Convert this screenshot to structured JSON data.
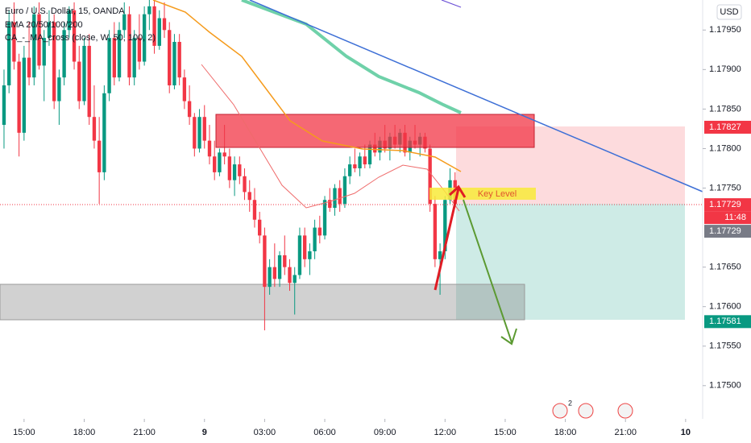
{
  "chart_data": {
    "type": "candlestick",
    "title": "Euro / U.S. Dollar, 15, OANDA",
    "indicators": [
      "EMA 20/50/100/200",
      "CA_-_MA_cross (close, W, 50, 100, 2)"
    ],
    "currency": "USD",
    "annotation": "Key Level",
    "countdown": "11:48",
    "event_badge": "2",
    "up_color": "#089981",
    "down_color": "#f23645",
    "x": [
      -4,
      -3,
      -2,
      -1,
      0,
      1,
      2,
      3,
      4,
      5,
      6,
      7,
      8,
      9,
      10,
      11,
      12,
      13,
      14,
      15,
      16,
      17,
      18,
      19,
      20,
      21,
      22,
      23,
      24,
      25,
      26,
      27,
      28,
      29,
      30,
      31,
      32,
      33,
      34,
      35,
      36,
      37,
      38,
      39,
      40,
      41,
      42,
      43,
      44,
      45,
      46,
      47,
      48,
      49,
      50,
      51,
      52,
      53,
      54,
      55,
      56,
      57,
      58,
      59,
      60,
      61,
      62,
      63,
      64,
      65,
      66,
      67,
      68,
      69,
      70,
      71,
      72,
      73,
      74,
      75,
      76,
      77,
      78,
      79,
      80,
      81,
      82,
      83,
      84,
      85,
      86
    ],
    "open": [
      1.1783,
      1.1788,
      1.1796,
      1.1791,
      1.1782,
      1.17915,
      1.1789,
      1.1797,
      1.17905,
      1.1794,
      1.1796,
      1.1786,
      1.1789,
      1.1795,
      1.17975,
      1.1791,
      1.1786,
      1.1793,
      1.1784,
      1.1781,
      1.1777,
      1.1787,
      1.1794,
      1.1789,
      1.1795,
      1.1797,
      1.1789,
      1.1794,
      1.1791,
      1.1797,
      1.1798,
      1.1793,
      1.17965,
      1.1795,
      1.1788,
      1.17935,
      1.1789,
      1.1786,
      1.1784,
      1.178,
      1.1784,
      1.1781,
      1.1779,
      1.1777,
      1.17795,
      1.1779,
      1.1776,
      1.1778,
      1.17765,
      1.17745,
      1.17735,
      1.1771,
      1.1769,
      1.17625,
      1.1765,
      1.17635,
      1.17665,
      1.1765,
      1.1763,
      1.1764,
      1.1769,
      1.1766,
      1.1767,
      1.177,
      1.1769,
      1.17735,
      1.17725,
      1.1775,
      1.1773,
      1.17765,
      1.1778,
      1.17775,
      1.1779,
      1.1778,
      1.17805,
      1.17795,
      1.1781,
      1.178,
      1.17815,
      1.17805,
      1.1782,
      1.17795,
      1.1781,
      1.17805,
      1.17815,
      1.178,
      1.1773,
      1.1766,
      1.1767,
      1.17735,
      1.1776
    ],
    "high": [
      1.179,
      1.17975,
      1.17985,
      1.1792,
      1.1793,
      1.1796,
      1.1798,
      1.17985,
      1.1795,
      1.17975,
      1.1797,
      1.179,
      1.1796,
      1.1798,
      1.17985,
      1.1793,
      1.1794,
      1.17945,
      1.1788,
      1.1784,
      1.1788,
      1.1795,
      1.1796,
      1.1796,
      1.17985,
      1.1798,
      1.1795,
      1.1797,
      1.1798,
      1.1799,
      1.1799,
      1.17975,
      1.17985,
      1.1796,
      1.17945,
      1.17945,
      1.179,
      1.1788,
      1.17845,
      1.1785,
      1.17855,
      1.1783,
      1.1781,
      1.178,
      1.1783,
      1.178,
      1.1779,
      1.1779,
      1.17775,
      1.1776,
      1.1775,
      1.1772,
      1.177,
      1.1766,
      1.1768,
      1.1767,
      1.1769,
      1.1766,
      1.1765,
      1.177,
      1.177,
      1.1768,
      1.1771,
      1.17715,
      1.1774,
      1.1775,
      1.17755,
      1.1776,
      1.17775,
      1.1779,
      1.178,
      1.17795,
      1.17805,
      1.1781,
      1.1782,
      1.17815,
      1.1783,
      1.1782,
      1.1783,
      1.17825,
      1.1783,
      1.17815,
      1.1783,
      1.1782,
      1.1782,
      1.17805,
      1.1774,
      1.1768,
      1.1774,
      1.17775,
      1.1777
    ],
    "low": [
      1.178,
      1.1787,
      1.179,
      1.1779,
      1.1781,
      1.1788,
      1.1788,
      1.179,
      1.1786,
      1.1793,
      1.1785,
      1.1783,
      1.1788,
      1.1794,
      1.179,
      1.1785,
      1.17855,
      1.1783,
      1.178,
      1.1773,
      1.1776,
      1.1786,
      1.1788,
      1.17885,
      1.1794,
      1.1788,
      1.1788,
      1.179,
      1.17905,
      1.1795,
      1.1792,
      1.17925,
      1.1794,
      1.1787,
      1.17875,
      1.1788,
      1.1785,
      1.1783,
      1.1779,
      1.17795,
      1.178,
      1.1778,
      1.1776,
      1.17765,
      1.1778,
      1.1775,
      1.1774,
      1.17755,
      1.17735,
      1.1772,
      1.177,
      1.1768,
      1.1757,
      1.17615,
      1.17625,
      1.17625,
      1.1764,
      1.1762,
      1.1759,
      1.17635,
      1.1765,
      1.1764,
      1.1766,
      1.1768,
      1.17685,
      1.1772,
      1.17715,
      1.1772,
      1.17725,
      1.17755,
      1.1777,
      1.17765,
      1.17775,
      1.17775,
      1.1779,
      1.17785,
      1.17795,
      1.17785,
      1.178,
      1.17795,
      1.1779,
      1.17785,
      1.178,
      1.1779,
      1.17795,
      1.1772,
      1.1765,
      1.17615,
      1.1766,
      1.1773,
      1.17725
    ],
    "close": [
      1.1788,
      1.1796,
      1.1791,
      1.1782,
      1.17915,
      1.1789,
      1.1797,
      1.17905,
      1.1794,
      1.1796,
      1.1786,
      1.1789,
      1.1795,
      1.17975,
      1.1791,
      1.1786,
      1.1793,
      1.1784,
      1.1781,
      1.1777,
      1.1787,
      1.1794,
      1.1789,
      1.1795,
      1.1797,
      1.1789,
      1.1794,
      1.1791,
      1.1797,
      1.1798,
      1.1793,
      1.17965,
      1.1795,
      1.1788,
      1.17935,
      1.1789,
      1.1786,
      1.1784,
      1.178,
      1.1784,
      1.1781,
      1.1779,
      1.1777,
      1.17795,
      1.1779,
      1.1776,
      1.1778,
      1.17765,
      1.17745,
      1.17735,
      1.1771,
      1.1769,
      1.17625,
      1.1765,
      1.17635,
      1.17665,
      1.1765,
      1.1763,
      1.1764,
      1.1769,
      1.1766,
      1.1767,
      1.177,
      1.1769,
      1.17735,
      1.17725,
      1.1775,
      1.1773,
      1.17765,
      1.1778,
      1.17775,
      1.1779,
      1.1778,
      1.17805,
      1.17795,
      1.1781,
      1.178,
      1.17815,
      1.17805,
      1.1782,
      1.17795,
      1.1781,
      1.17805,
      1.17815,
      1.178,
      1.1773,
      1.1766,
      1.1767,
      1.17735,
      1.1776,
      1.1773
    ],
    "xlim": [
      -4.8,
      135.4
    ],
    "xticks": [
      {
        "value": 0,
        "label": "15:00"
      },
      {
        "value": 12,
        "label": "18:00"
      },
      {
        "value": 24,
        "label": "21:00"
      },
      {
        "value": 36,
        "label": "9"
      },
      {
        "value": 48,
        "label": "03:00"
      },
      {
        "value": 60,
        "label": "06:00"
      },
      {
        "value": 72,
        "label": "09:00"
      },
      {
        "value": 84,
        "label": "12:00"
      },
      {
        "value": 96,
        "label": "15:00"
      },
      {
        "value": 108,
        "label": "18:00"
      },
      {
        "value": 120,
        "label": "21:00"
      },
      {
        "value": 132,
        "label": "10"
      }
    ],
    "ylim": [
      1.17458,
      1.17988
    ],
    "yticks": [
      {
        "value": 1.1795,
        "label": "1.17950"
      },
      {
        "value": 1.179,
        "label": "1.17900"
      },
      {
        "value": 1.1785,
        "label": "1.17850"
      },
      {
        "value": 1.178,
        "label": "1.17800"
      },
      {
        "value": 1.1775,
        "label": "1.17750"
      },
      {
        "value": 1.1765,
        "label": "1.17650"
      },
      {
        "value": 1.176,
        "label": "1.17600"
      },
      {
        "value": 1.1755,
        "label": "1.17550"
      },
      {
        "value": 1.175,
        "label": "1.17500"
      }
    ],
    "price_labels": [
      {
        "value": 1.17827,
        "color": "#f23645"
      },
      {
        "value": 1.17729,
        "color": "#f23645"
      },
      {
        "value": 1.17729,
        "color": "#787b86"
      },
      {
        "value": 1.17581,
        "color": "#089981"
      }
    ]
  }
}
